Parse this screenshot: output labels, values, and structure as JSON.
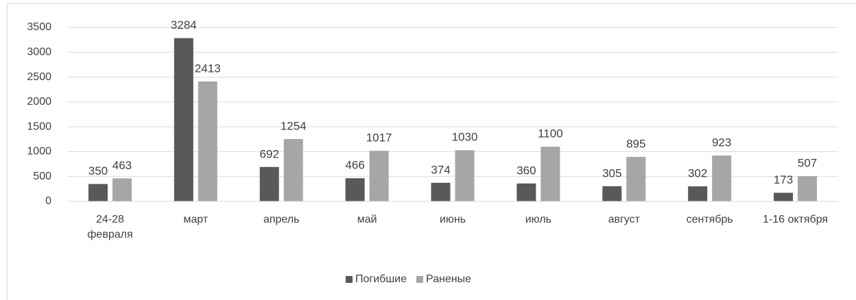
{
  "chart_data": {
    "type": "bar",
    "categories": [
      "24-28 февраля",
      "март",
      "апрель",
      "май",
      "июнь",
      "июль",
      "август",
      "сентябрь",
      "1-16 октября"
    ],
    "series": [
      {
        "name": "Погибшие",
        "color": "#595959",
        "values": [
          350,
          3284,
          692,
          466,
          374,
          360,
          305,
          302,
          173
        ]
      },
      {
        "name": "Раненые",
        "color": "#a6a6a6",
        "values": [
          463,
          2413,
          1254,
          1017,
          1030,
          1100,
          895,
          923,
          507
        ]
      }
    ],
    "ylim": [
      0,
      3500
    ],
    "yticks": [
      0,
      500,
      1000,
      1500,
      2000,
      2500,
      3000,
      3500
    ],
    "grid": true,
    "legend": "bottom"
  }
}
